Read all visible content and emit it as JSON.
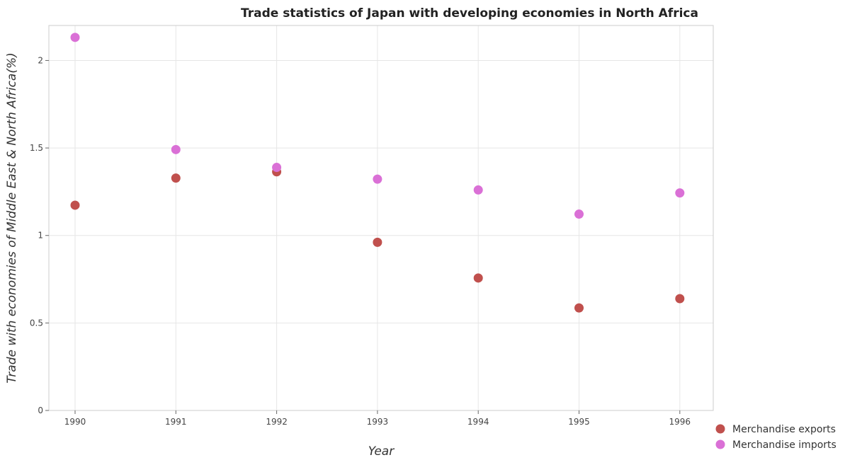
{
  "chart_data": {
    "type": "scatter",
    "title": "Trade statistics of Japan with developing economies in North Africa",
    "xlabel": "Year",
    "ylabel": "Trade with economies of Middle East & North Africa(%)",
    "categories": [
      "1990",
      "1991",
      "1992",
      "1993",
      "1994",
      "1995",
      "1996"
    ],
    "ylim": [
      0,
      2.2
    ],
    "yticks": [
      0,
      0.5,
      1,
      1.5,
      2
    ],
    "ytick_labels": [
      "0",
      "0.5",
      "1",
      "1.5",
      "2"
    ],
    "grid": true,
    "legend_position": "bottom-right",
    "series": [
      {
        "name": "Merchandise exports",
        "color": "#c0504d",
        "values": [
          1.173,
          1.328,
          1.364,
          0.961,
          0.757,
          0.586,
          0.639
        ]
      },
      {
        "name": "Merchandise imports",
        "color": "#da70d6",
        "values": [
          2.132,
          1.491,
          1.389,
          1.322,
          1.26,
          1.122,
          1.243
        ]
      }
    ]
  }
}
